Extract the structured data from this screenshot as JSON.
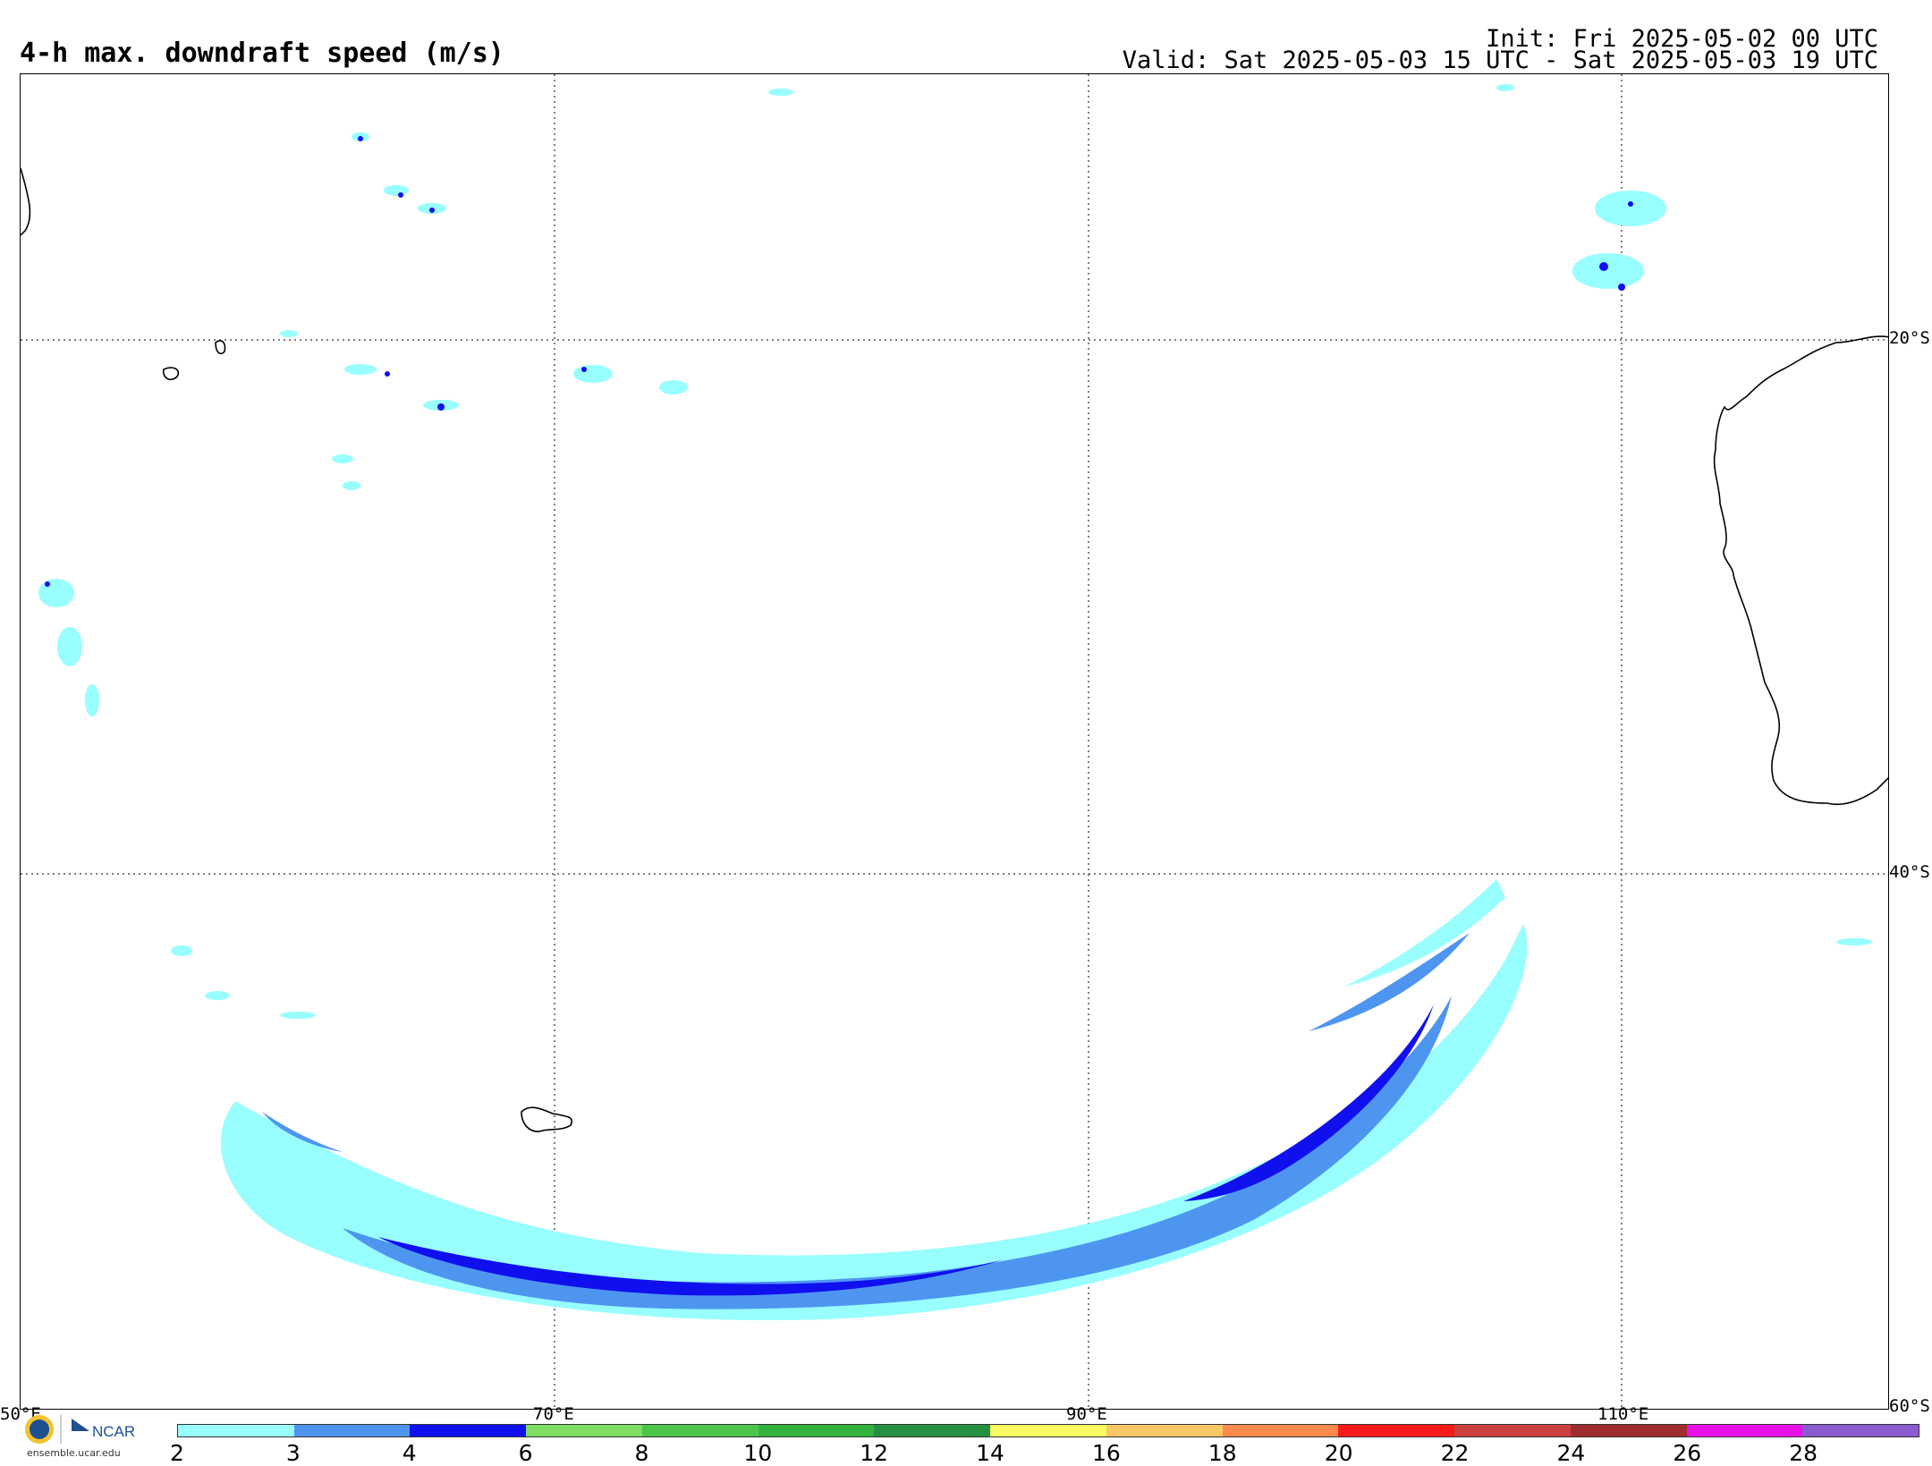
{
  "header": {
    "title": "4-h max. downdraft speed (m/s)",
    "init": "Init: Fri 2025-05-02 00 UTC",
    "valid": "Valid: Sat 2025-05-03 15 UTC - Sat 2025-05-03 19 UTC"
  },
  "map": {
    "lat_labels": [
      "20°S",
      "40°S",
      "60°S"
    ],
    "lon_labels": [
      "50°E",
      "70°E",
      "90°E",
      "110°E"
    ]
  },
  "colorbar": {
    "ticks": [
      "2",
      "3",
      "4",
      "6",
      "8",
      "10",
      "12",
      "14",
      "16",
      "18",
      "20",
      "22",
      "24",
      "26",
      "28"
    ],
    "colors": [
      "#98fefe",
      "#4e95f0",
      "#1010ee",
      "#7edd62",
      "#4cc64a",
      "#33b33d",
      "#249040",
      "#f9f964",
      "#fbc866",
      "#fd8a4e",
      "#f91a1a",
      "#cc3f3f",
      "#9e2e2e",
      "#e810e8",
      "#8b5ccf"
    ]
  },
  "branding": {
    "ncar_label": "NCAR",
    "site": "ensemble.ucar.edu"
  }
}
